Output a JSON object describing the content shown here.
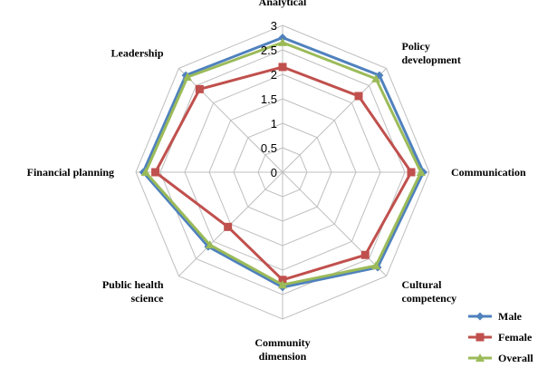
{
  "chart_data": {
    "type": "radar",
    "title": "",
    "categories": [
      "Analytical",
      "Policy development",
      "Communication",
      "Cultural competency",
      "Community dimension",
      "Public health science",
      "Financial planning",
      "Leadership"
    ],
    "category_lines": [
      [
        "Analytical"
      ],
      [
        "Policy",
        "development"
      ],
      [
        "Communication"
      ],
      [
        "Cultural",
        "competency"
      ],
      [
        "Community",
        "dimension"
      ],
      [
        "Public health",
        "science"
      ],
      [
        "Financial planning"
      ],
      [
        "Leadership"
      ]
    ],
    "range": [
      0,
      3
    ],
    "ticks": [
      0,
      0.5,
      1,
      1.5,
      2,
      2.5,
      3
    ],
    "tick_labels": [
      "0",
      "0.5",
      "1",
      "1.5",
      "2",
      "2.5",
      "3"
    ],
    "grid": true,
    "legend_position": "bottom-right",
    "series": [
      {
        "name": "Male",
        "color": "#4f81bd",
        "marker": "diamond",
        "values": [
          2.75,
          2.8,
          2.88,
          2.75,
          2.35,
          2.15,
          2.85,
          2.8
        ]
      },
      {
        "name": "Female",
        "color": "#c0504d",
        "marker": "square",
        "values": [
          2.15,
          2.2,
          2.63,
          2.39,
          2.2,
          1.58,
          2.6,
          2.4
        ]
      },
      {
        "name": "Overall",
        "color": "#9bbb59",
        "marker": "triangle",
        "values": [
          2.65,
          2.7,
          2.83,
          2.7,
          2.3,
          2.1,
          2.8,
          2.75
        ]
      }
    ]
  }
}
